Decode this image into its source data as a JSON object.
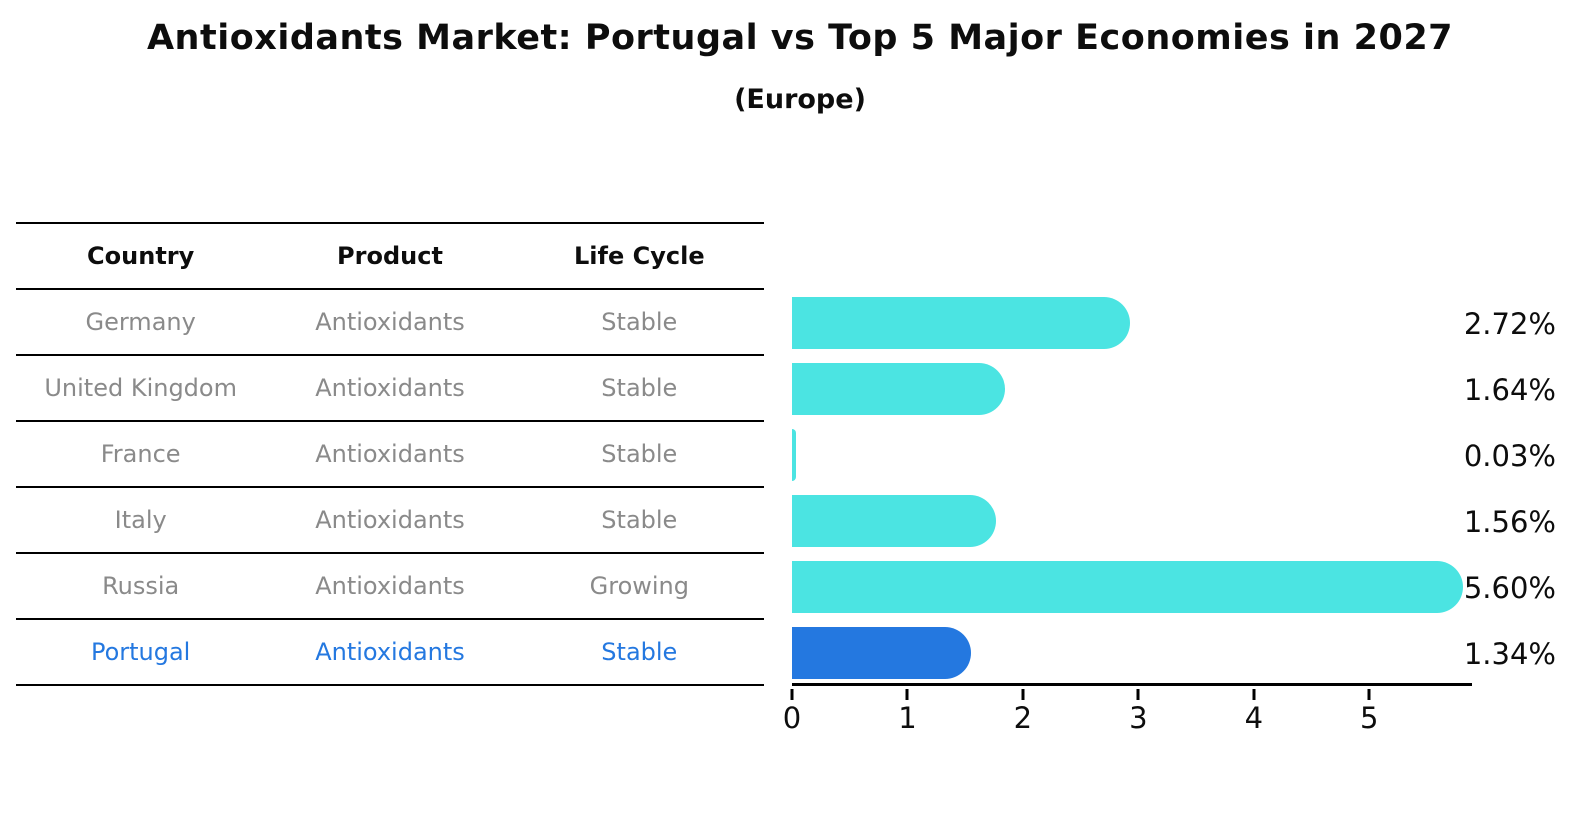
{
  "title": "Antioxidants Market: Portugal vs Top 5 Major Economies in 2027",
  "subtitle": "(Europe)",
  "table": {
    "headers": [
      "Country",
      "Product",
      "Life Cycle"
    ],
    "rows": [
      {
        "country": "Germany",
        "product": "Antioxidants",
        "life_cycle": "Stable",
        "highlight": false
      },
      {
        "country": "United Kingdom",
        "product": "Antioxidants",
        "life_cycle": "Stable",
        "highlight": false
      },
      {
        "country": "France",
        "product": "Antioxidants",
        "life_cycle": "Stable",
        "highlight": false
      },
      {
        "country": "Italy",
        "product": "Antioxidants",
        "life_cycle": "Stable",
        "highlight": false
      },
      {
        "country": "Russia",
        "product": "Antioxidants",
        "life_cycle": "Growing",
        "highlight": false
      },
      {
        "country": "Portugal",
        "product": "Antioxidants",
        "life_cycle": "Stable",
        "highlight": true
      }
    ]
  },
  "chart_data": {
    "type": "bar",
    "orientation": "horizontal",
    "title": "Antioxidants Market: Portugal vs Top 5 Major Economies in 2027",
    "subtitle": "(Europe)",
    "categories": [
      "Germany",
      "United Kingdom",
      "France",
      "Italy",
      "Russia",
      "Portugal"
    ],
    "values": [
      2.72,
      1.64,
      0.03,
      1.56,
      5.6,
      1.34
    ],
    "value_labels": [
      "2.72%",
      "1.64%",
      "0.03%",
      "1.56%",
      "5.60%",
      "1.34%"
    ],
    "x_ticks": [
      0,
      1,
      2,
      3,
      4,
      5
    ],
    "xlim": [
      0,
      5.89
    ],
    "xlabel": "",
    "ylabel": "",
    "grid": false,
    "legend": false,
    "highlight_index": 5,
    "highlight_style": "dotted-border",
    "bar_color": "#4be4e2",
    "highlight_color": "#2478e0"
  },
  "colors": {
    "bar_cyan": "#4be4e2",
    "highlight_blue": "#2478e0",
    "table_text_gray": "#8a8a8a",
    "ink": "#0d0d0d"
  }
}
